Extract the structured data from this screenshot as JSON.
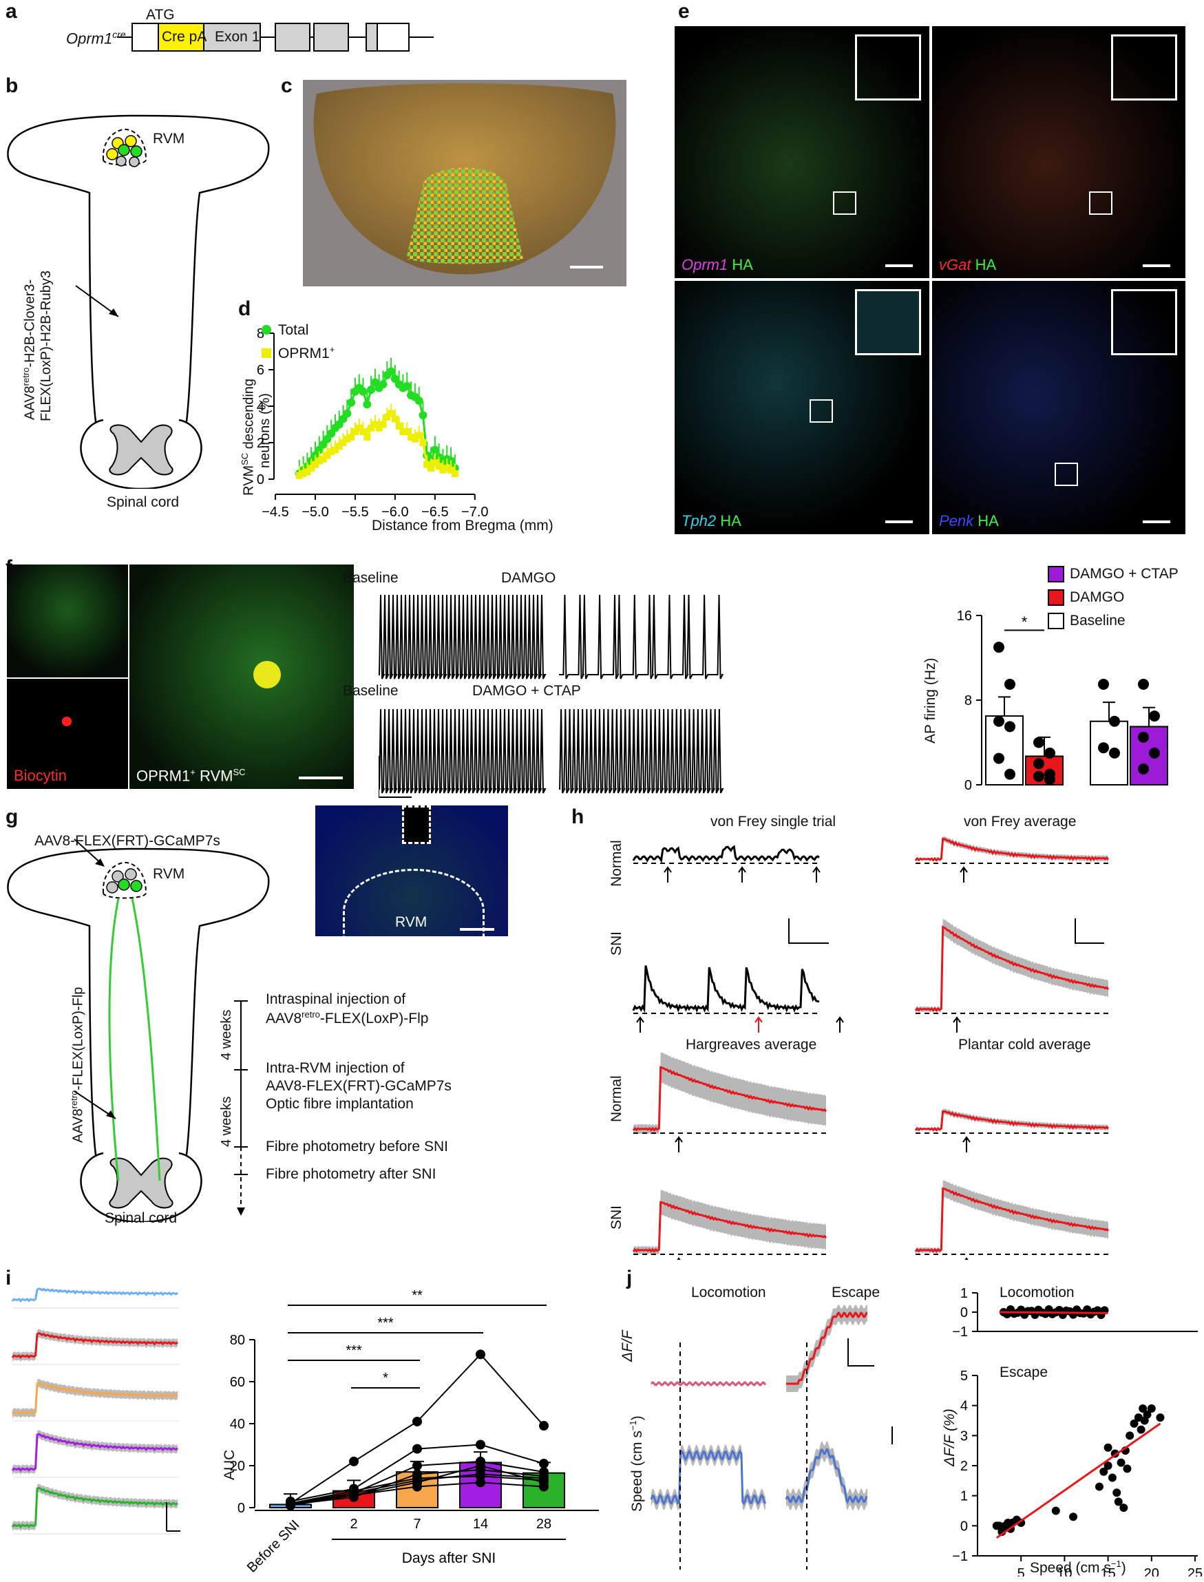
{
  "labels": {
    "a": "a",
    "b": "b",
    "c": "c",
    "d": "d",
    "e": "e",
    "f": "f",
    "g": "g",
    "h": "h",
    "i": "i",
    "j": "j"
  },
  "panel_a": {
    "gene": "Oprm1",
    "gene_sup": "cre",
    "atg": "ATG",
    "cre": "Cre pA",
    "exon": "Exon 1"
  },
  "panel_b": {
    "rvm": "RVM",
    "vector_l1": "AAV8",
    "vector_sup": "retro",
    "vector_l1b": "-H2B-Clover3-",
    "vector_l2": "FLEX(LoxP)-H2B-Ruby3",
    "cord": "Spinal cord"
  },
  "panel_d": {
    "legend_total": "Total",
    "legend_oprm1": "OPRM1",
    "legend_sup": "+",
    "ylabel_l1": "RVM",
    "ylabel_sup": "SC",
    "ylabel_l1b": " descending",
    "ylabel_l2": "neurons (%)",
    "xlabel": "Distance from Bregma (mm)",
    "yticks": [
      "0",
      "2",
      "4",
      "6",
      "8"
    ],
    "xticks": [
      "−4.5",
      "−5.0",
      "−5.5",
      "−6.0",
      "−6.5",
      "−7.0"
    ]
  },
  "panel_e": {
    "gene1": "Oprm1",
    "gene2": "vGat",
    "gene3": "Tph2",
    "gene4": "Penk",
    "ha": "HA"
  },
  "panel_f": {
    "biocytin": "Biocytin",
    "cell_label": "OPRM1",
    "cell_sup": "+",
    "cell_label2": " RVM",
    "cell_sup2": "SC",
    "trace_baseline": "Baseline",
    "trace_damgo": "DAMGO",
    "trace_damgo_ctap": "DAMGO + CTAP",
    "legend": [
      "DAMGO + CTAP",
      "DAMGO",
      "Baseline"
    ],
    "ylabel": "AP firing (Hz)",
    "yticks": [
      "0",
      "8",
      "16"
    ],
    "sig": "*"
  },
  "panel_g": {
    "vector_top": "AAV8-FLEX(FRT)-GCaMP7s",
    "rvm": "RVM",
    "vector_side_a": "AAV8",
    "vector_side_sup": "retro",
    "vector_side_b": "-FLEX(LoxP)-Flp",
    "cord": "Spinal cord",
    "rvm_img": "RVM",
    "weeks1": "4 weeks",
    "weeks2": "4 weeks",
    "step1_l1": "Intraspinal injection of",
    "step1_l2a": "AAV8",
    "step1_sup": "retro",
    "step1_l2b": "-FLEX(LoxP)-Flp",
    "step2_l1": "Intra-RVM injection of",
    "step2_l2": "AAV8-FLEX(FRT)-GCaMP7s",
    "step2_l3": "Optic fibre implantation",
    "step3": "Fibre photometry before SNI",
    "step4": "Fibre photometry after SNI"
  },
  "panel_h": {
    "title1": "von Frey single trial",
    "title2": "von Frey average",
    "title3": "Hargreaves average",
    "title4": "Plantar cold average",
    "row_normal": "Normal",
    "row_sni": "SNI"
  },
  "panel_i": {
    "ylabel": "AUC",
    "yticks": [
      "0",
      "20",
      "40",
      "60",
      "80"
    ],
    "xticks": [
      "Before SNI",
      "2",
      "7",
      "14",
      "28"
    ],
    "xlabel": "Days after SNI",
    "sig": [
      "**",
      "***",
      "***",
      "*"
    ]
  },
  "panel_j": {
    "loco": "Locomotion",
    "escape": "Escape",
    "dff": "ΔF/F",
    "speed": "Speed (cm s",
    "speed_sup": "−1",
    "speed_close": ")",
    "scatter_title1": "Locomotion",
    "scatter_title2": "Escape",
    "scatter_ylabel": "ΔF/F (%)",
    "scatter_xlabel": "Speed (cm s",
    "scatter_xsup": "−1",
    "scatter_xclose": ")",
    "top_yticks": [
      "1",
      "0",
      "−1"
    ],
    "yticks": [
      "5",
      "4",
      "3",
      "2",
      "1",
      "0",
      "−1"
    ],
    "xticks": [
      "5",
      "10",
      "15",
      "20",
      "25"
    ]
  },
  "chart_data": [
    {
      "type": "line",
      "xlabel": "Distance from Bregma (mm)",
      "ylabel": "RVMSC descending neurons (%)",
      "xlim": [
        -4.5,
        -7.0
      ],
      "ylim": [
        0,
        8
      ],
      "legend": "top-left",
      "series": [
        {
          "name": "Total",
          "color": "#22dd22",
          "x": [
            -4.8,
            -4.85,
            -4.9,
            -4.95,
            -5.0,
            -5.05,
            -5.1,
            -5.15,
            -5.2,
            -5.25,
            -5.3,
            -5.35,
            -5.4,
            -5.45,
            -5.5,
            -5.55,
            -5.6,
            -5.65,
            -5.7,
            -5.75,
            -5.8,
            -5.85,
            -5.9,
            -5.95,
            -6.0,
            -6.05,
            -6.1,
            -6.15,
            -6.2,
            -6.25,
            -6.3,
            -6.35,
            -6.4,
            -6.45,
            -6.5,
            -6.55,
            -6.6,
            -6.65,
            -6.7,
            -6.75
          ],
          "y": [
            0.3,
            0.5,
            0.7,
            1.0,
            1.3,
            1.6,
            1.9,
            2.2,
            2.5,
            2.8,
            3.0,
            3.3,
            3.6,
            4.2,
            4.8,
            5.0,
            4.8,
            4.1,
            4.9,
            5.3,
            5.0,
            5.2,
            5.7,
            5.9,
            5.5,
            5.2,
            5.0,
            5.1,
            4.6,
            4.5,
            4.3,
            3.5,
            1.3,
            1.0,
            1.6,
            1.2,
            0.9,
            1.1,
            1.0,
            0.6
          ]
        },
        {
          "name": "OPRM1+",
          "color": "#eeee00",
          "x": [
            -4.8,
            -4.85,
            -4.9,
            -4.95,
            -5.0,
            -5.05,
            -5.1,
            -5.15,
            -5.2,
            -5.25,
            -5.3,
            -5.35,
            -5.4,
            -5.45,
            -5.5,
            -5.55,
            -5.6,
            -5.65,
            -5.7,
            -5.75,
            -5.8,
            -5.85,
            -5.9,
            -5.95,
            -6.0,
            -6.05,
            -6.1,
            -6.15,
            -6.2,
            -6.25,
            -6.3,
            -6.35,
            -6.4,
            -6.45,
            -6.5,
            -6.55,
            -6.6,
            -6.65,
            -6.7,
            -6.75
          ],
          "y": [
            0.2,
            0.3,
            0.4,
            0.6,
            0.8,
            1.0,
            1.1,
            1.3,
            1.5,
            1.6,
            1.8,
            2.0,
            2.2,
            2.3,
            2.6,
            2.8,
            2.6,
            2.3,
            2.8,
            3.0,
            2.8,
            3.0,
            3.4,
            3.6,
            3.3,
            2.9,
            2.6,
            2.6,
            2.3,
            2.2,
            2.4,
            2.0,
            0.8,
            0.6,
            0.9,
            0.7,
            0.5,
            0.6,
            0.5,
            0.3
          ]
        }
      ]
    },
    {
      "type": "bar",
      "ylabel": "AP firing (Hz)",
      "ylim": [
        0,
        16
      ],
      "legend": "top-right",
      "series": [
        {
          "name": "Baseline",
          "color": "#ffffff",
          "values": [
            6.5,
            6.0
          ],
          "points": [
            [
              13,
              9.5,
              6,
              5.5,
              2.5,
              1
            ],
            [
              9.5,
              6,
              3.5,
              3
            ]
          ]
        },
        {
          "name": "DAMGO",
          "color": "#e8161b",
          "values": [
            2.7
          ],
          "points": [
            [
              4,
              3,
              2,
              1,
              0.8,
              0.5
            ]
          ]
        },
        {
          "name": "DAMGO + CTAP",
          "color": "#9b1bd6",
          "values": [
            5.5
          ],
          "points": [
            [
              9.5,
              6.5,
              4.5,
              3,
              1.5
            ]
          ]
        }
      ]
    },
    {
      "type": "bar",
      "ylabel": "AUC",
      "ylim": [
        0,
        80
      ],
      "categories": [
        "Before SNI",
        "2",
        "7",
        "14",
        "28"
      ],
      "xlabel": "Days after SNI",
      "values": [
        1.5,
        8,
        17,
        21.5,
        16.5
      ],
      "colors": [
        "#6aaefc",
        "#e8161b",
        "#f7a74b",
        "#a01fe0",
        "#2ab32a"
      ],
      "subjects": [
        [
          2,
          3,
          2,
          1.5,
          1,
          2,
          1,
          2
        ],
        [
          22,
          9,
          7,
          5,
          6,
          8,
          7,
          6
        ],
        [
          41,
          28,
          20,
          16,
          12,
          14,
          13,
          10
        ],
        [
          73,
          30,
          22,
          18,
          20,
          15,
          16,
          12
        ],
        [
          39,
          21,
          17,
          15,
          12,
          13,
          14,
          10
        ]
      ]
    },
    {
      "type": "scatter",
      "xlabel": "Speed (cm s−1)",
      "ylabel": "ΔF/F (%)",
      "xlim": [
        0,
        25
      ],
      "ylim": [
        -1,
        5
      ],
      "series": [
        {
          "name": "Escape",
          "x": [
            2.5,
            3,
            3.5,
            2.8,
            3.2,
            4,
            4.5,
            3.8,
            5,
            2.2,
            3.6,
            9,
            11,
            14,
            14.5,
            15,
            15.5,
            16,
            16.2,
            15.8,
            16.5,
            17,
            17.5,
            18,
            18.5,
            19,
            19.5,
            20,
            21,
            15,
            16.8,
            17.2,
            18.8,
            19.2
          ],
          "y": [
            0,
            -0.1,
            0.1,
            -0.2,
            0,
            0.1,
            0.2,
            -0.1,
            0.1,
            0,
            -0.05,
            0.5,
            0.3,
            1.3,
            1.8,
            2.0,
            1.6,
            1.1,
            0.8,
            2.4,
            2.1,
            2.5,
            3.0,
            3.4,
            3.6,
            3.9,
            3.7,
            3.9,
            3.6,
            2.6,
            0.6,
            1.9,
            3.2,
            3.5
          ]
        }
      ]
    }
  ]
}
